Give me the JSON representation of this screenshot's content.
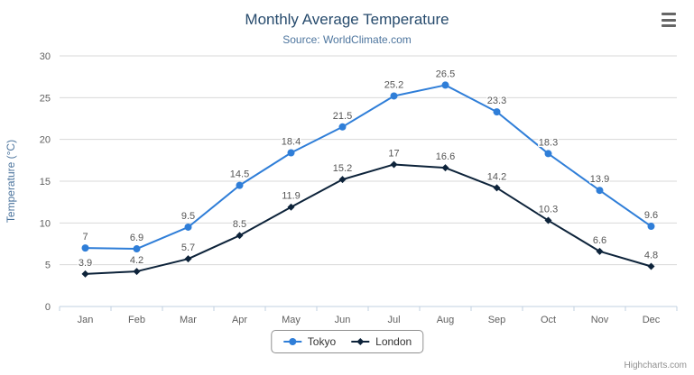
{
  "credits": {
    "label": "Highcharts.com"
  },
  "export_menu": {
    "icon": "hamburger-menu-icon"
  },
  "chart_data": {
    "type": "line",
    "title": "Monthly Average Temperature",
    "subtitle": "Source: WorldClimate.com",
    "categories": [
      "Jan",
      "Feb",
      "Mar",
      "Apr",
      "May",
      "Jun",
      "Jul",
      "Aug",
      "Sep",
      "Oct",
      "Nov",
      "Dec"
    ],
    "series": [
      {
        "name": "Tokyo",
        "marker": "circle",
        "color": "#2f7ed8",
        "values": [
          7,
          6.9,
          9.5,
          14.5,
          18.4,
          21.5,
          25.2,
          26.5,
          23.3,
          18.3,
          13.9,
          9.6
        ]
      },
      {
        "name": "London",
        "marker": "diamond",
        "color": "#0d233a",
        "values": [
          3.9,
          4.2,
          5.7,
          8.5,
          11.9,
          15.2,
          17,
          16.6,
          14.2,
          10.3,
          6.6,
          4.8
        ]
      }
    ],
    "xlabel": "",
    "ylabel": "Temperature (°C)",
    "ylim": [
      0,
      30
    ],
    "ytick_interval": 5,
    "grid": true,
    "legend_position": "bottom-center",
    "colors": {
      "title": "#274b6d",
      "subtitle": "#4d759e",
      "axis_title": "#4d759e",
      "axis_label": "#606060",
      "data_label": "#555555",
      "gridline": "#d8d8d8",
      "axis_line": "#c0d0e0",
      "legend_text": "#333333",
      "credits": "#909090"
    }
  }
}
